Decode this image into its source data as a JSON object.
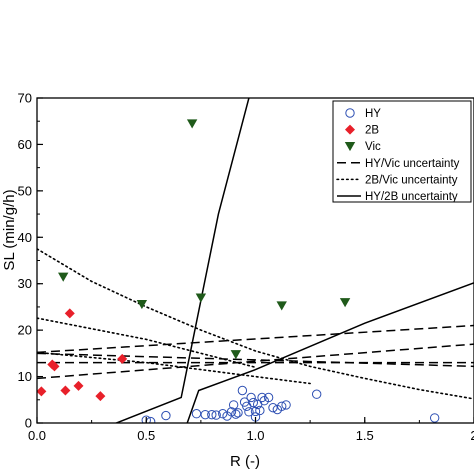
{
  "chart_data": {
    "type": "scatter",
    "title": "",
    "xlabel": "R (-)",
    "ylabel": "SL (min/g/h)",
    "xlim": [
      0,
      2
    ],
    "ylim": [
      0,
      70
    ],
    "x_ticks": [
      "0.0",
      "0.5",
      "1.0",
      "1.5",
      "2"
    ],
    "y_ticks": [
      "0",
      "10",
      "20",
      "30",
      "40",
      "50",
      "60",
      "70"
    ],
    "legend_position": "top-right",
    "grid": false,
    "series": [
      {
        "name": "HY",
        "kind": "points",
        "marker": "open-circle",
        "color": "#2d4fb3",
        "points": [
          [
            0.5,
            0.6
          ],
          [
            0.52,
            0.3
          ],
          [
            0.59,
            1.6
          ],
          [
            0.73,
            2.0
          ],
          [
            0.77,
            1.8
          ],
          [
            0.8,
            1.8
          ],
          [
            0.82,
            1.7
          ],
          [
            0.85,
            2.0
          ],
          [
            0.87,
            1.5
          ],
          [
            0.89,
            2.4
          ],
          [
            0.9,
            3.9
          ],
          [
            0.91,
            1.9
          ],
          [
            0.92,
            2.2
          ],
          [
            0.94,
            7.0
          ],
          [
            0.95,
            4.5
          ],
          [
            0.96,
            3.6
          ],
          [
            0.97,
            2.4
          ],
          [
            0.98,
            5.5
          ],
          [
            0.99,
            4.4
          ],
          [
            1.0,
            1.3
          ],
          [
            1.0,
            2.5
          ],
          [
            1.01,
            4.0
          ],
          [
            1.02,
            2.7
          ],
          [
            1.03,
            5.5
          ],
          [
            1.04,
            4.8
          ],
          [
            1.06,
            5.5
          ],
          [
            1.08,
            3.3
          ],
          [
            1.1,
            2.9
          ],
          [
            1.12,
            3.6
          ],
          [
            1.14,
            3.9
          ],
          [
            1.28,
            6.2
          ],
          [
            1.82,
            1.1
          ]
        ]
      },
      {
        "name": "2B",
        "kind": "points",
        "marker": "diamond",
        "color": "#e8202a",
        "points": [
          [
            0.02,
            6.8
          ],
          [
            0.07,
            12.6
          ],
          [
            0.08,
            12.2
          ],
          [
            0.13,
            7.0
          ],
          [
            0.15,
            23.6
          ],
          [
            0.19,
            8.0
          ],
          [
            0.29,
            5.8
          ],
          [
            0.39,
            13.8
          ]
        ]
      },
      {
        "name": "Vic",
        "kind": "points",
        "marker": "triangle-down",
        "color": "#1f5a1a",
        "points": [
          [
            0.12,
            31.5
          ],
          [
            0.48,
            25.6
          ],
          [
            0.71,
            64.5
          ],
          [
            0.75,
            27.0
          ],
          [
            0.91,
            14.8
          ],
          [
            1.12,
            25.3
          ],
          [
            1.41,
            26.0
          ]
        ]
      },
      {
        "name": "HY/Vic uncertainty",
        "kind": "line",
        "dash": "dashed",
        "lines": [
          [
            [
              0.0,
              15.2
            ],
            [
              2.0,
              21.0
            ]
          ],
          [
            [
              0.0,
              13.0
            ],
            [
              2.0,
              13.0
            ]
          ],
          [
            [
              0.0,
              9.6
            ],
            [
              2.0,
              17.0
            ]
          ],
          [
            [
              0.0,
              15.0
            ],
            [
              2.0,
              12.2
            ]
          ]
        ]
      },
      {
        "name": "2B/Vic uncertainty",
        "kind": "line",
        "dash": "dotted",
        "lines": [
          [
            [
              0.0,
              37.5
            ],
            [
              0.25,
              30.5
            ],
            [
              0.5,
              25.0
            ],
            [
              0.75,
              20.0
            ],
            [
              1.0,
              15.5
            ],
            [
              1.25,
              12.2
            ],
            [
              1.5,
              9.6
            ],
            [
              1.75,
              7.2
            ],
            [
              2.0,
              5.2
            ]
          ],
          [
            [
              0.0,
              22.6
            ],
            [
              0.5,
              18.0
            ],
            [
              0.8,
              14.4
            ],
            [
              1.0,
              12.0
            ]
          ],
          [
            [
              0.0,
              15.2
            ],
            [
              0.5,
              13.0
            ],
            [
              1.0,
              10.0
            ],
            [
              1.25,
              8.5
            ]
          ]
        ]
      },
      {
        "name": "HY/2B uncertainty",
        "kind": "line",
        "dash": "solid",
        "lines": [
          [
            [
              0.31,
              -1.0
            ],
            [
              0.66,
              5.5
            ],
            [
              0.83,
              45.0
            ],
            [
              0.97,
              70.0
            ],
            [
              1.23,
              110.0
            ]
          ],
          [
            [
              0.68,
              -1.0
            ],
            [
              0.74,
              7.0
            ],
            [
              1.0,
              11.5
            ],
            [
              1.5,
              21.5
            ],
            [
              2.0,
              30.2
            ]
          ]
        ]
      }
    ]
  },
  "colors": {
    "hy": "#2d4fb3",
    "two_b": "#e8202a",
    "vic": "#1f5a1a",
    "axis": "#000000"
  }
}
